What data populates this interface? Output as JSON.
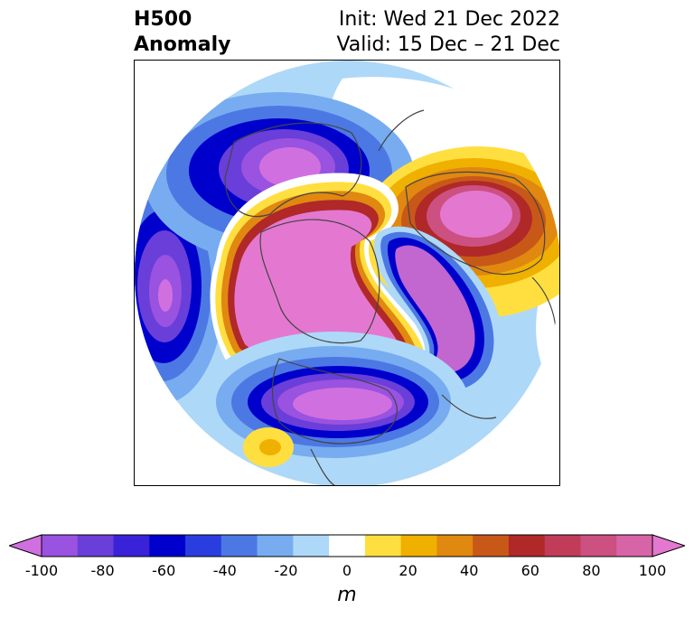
{
  "title": {
    "left_line1": "H500",
    "left_line2": "Anomaly",
    "right_line1": "Init: Wed 21 Dec 2022",
    "right_line2": "Valid: 15 Dec – 21 Dec"
  },
  "colorbar": {
    "unit": "m",
    "tick_labels": [
      "-100",
      "-80",
      "-60",
      "-40",
      "-20",
      "0",
      "20",
      "40",
      "60",
      "80",
      "100"
    ],
    "colors": [
      "#d070e0",
      "#9a52e0",
      "#6a3ed8",
      "#3a22d8",
      "#0000cc",
      "#2a3ee0",
      "#4c78e4",
      "#78acf0",
      "#aed8f8",
      "#ffffff",
      "#ffdf40",
      "#f0b000",
      "#e08810",
      "#c85818",
      "#b02828",
      "#c03c58",
      "#cc5080",
      "#d864a8",
      "#e478d0"
    ],
    "extend": "both"
  },
  "map": {
    "projection": "north polar stereographic",
    "field": "500 hPa geopotential height anomaly",
    "features": [
      {
        "name": "positive-anomaly-central",
        "sign": "positive"
      },
      {
        "name": "positive-anomaly-europe",
        "sign": "positive"
      },
      {
        "name": "negative-anomaly-us",
        "sign": "negative"
      },
      {
        "name": "negative-anomaly-alaska-pacific",
        "sign": "negative"
      },
      {
        "name": "negative-anomaly-siberia",
        "sign": "negative"
      },
      {
        "name": "negative-anomaly-north-pacific",
        "sign": "negative"
      }
    ]
  }
}
